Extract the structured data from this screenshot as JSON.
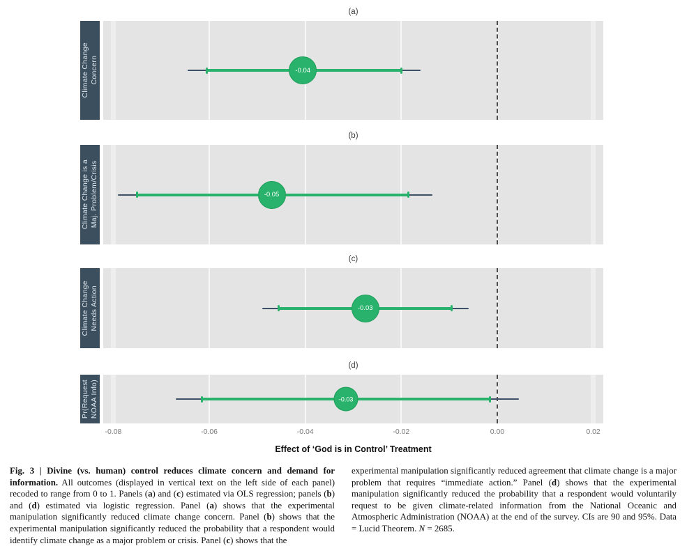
{
  "theme": {
    "accent_green": "#29b26b",
    "accent_green_dark": "#1d9e59",
    "ci_dark": "#3c5168",
    "panel_bg": "#e4e4e4",
    "label_box_bg": "#3c4f5e",
    "label_text": "#dde6ed",
    "gridline": "#f7f7f7",
    "gridline_edge": "#eeeeee",
    "zero_line": "#4d4d4d",
    "tick_text": "#7a7a7a"
  },
  "chart_data": {
    "type": "scatter",
    "subtype": "coefficient-dot-whisker",
    "x_axis": {
      "label": "Effect of ‘God is in Control’ Treatment",
      "min": -0.0821,
      "max": 0.0221,
      "ticks": [
        -0.08,
        -0.06,
        -0.04,
        -0.02,
        0,
        0.02
      ],
      "tick_labels": [
        "-0.08",
        "-0.06",
        "-0.04",
        "-0.02",
        "0.00",
        "0.02"
      ]
    },
    "zero_reference": 0,
    "grid": true,
    "panels": [
      {
        "panel_label": "(a)",
        "outcome": "Climate Change\nConcern",
        "estimate": -0.0405,
        "estimate_label": "-0.04",
        "ci90": [
          -0.0605,
          -0.02
        ],
        "ci95": [
          -0.0645,
          -0.016
        ]
      },
      {
        "panel_label": "(b)",
        "outcome": "Climate Change is a\nMaj. Problem/Crisis",
        "estimate": -0.047,
        "estimate_label": "-0.05",
        "ci90": [
          -0.075,
          -0.0185
        ],
        "ci95": [
          -0.079,
          -0.0135
        ]
      },
      {
        "panel_label": "(c)",
        "outcome": "Climate Change\nNeeds Action",
        "estimate": -0.0275,
        "estimate_label": "-0.03",
        "ci90": [
          -0.0455,
          -0.0095
        ],
        "ci95": [
          -0.049,
          -0.006
        ]
      },
      {
        "panel_label": "(d)",
        "outcome": "Pr(Request\nNOAA Info)",
        "estimate": -0.0315,
        "estimate_label": "-0.03",
        "ci90": [
          -0.0615,
          -0.0015
        ],
        "ci95": [
          -0.067,
          0.0045
        ]
      }
    ]
  },
  "caption": {
    "left": [
      {
        "t": "Fig. 3 | Divine (vs. human) control reduces climate concern and demand for information.",
        "b": true
      },
      {
        "t": " All outcomes (displayed in vertical text on the left side of each panel) recoded to range from 0 to 1. Panels ("
      },
      {
        "t": "a",
        "b": true
      },
      {
        "t": ") and ("
      },
      {
        "t": "c",
        "b": true
      },
      {
        "t": ") estimated via OLS regression; panels ("
      },
      {
        "t": "b",
        "b": true
      },
      {
        "t": ") and ("
      },
      {
        "t": "d",
        "b": true
      },
      {
        "t": ") estimated via logistic regression. Panel ("
      },
      {
        "t": "a",
        "b": true
      },
      {
        "t": ") shows that the experimental manipulation significantly reduced climate change concern. Panel ("
      },
      {
        "t": "b",
        "b": true
      },
      {
        "t": ") shows that the experimental manipulation significantly reduced the probability that a respondent would identify climate change as a major problem or crisis. Panel ("
      },
      {
        "t": "c",
        "b": true
      },
      {
        "t": ") shows that the"
      }
    ],
    "right": [
      {
        "t": "experimental manipulation significantly reduced agreement that climate change is a major problem that requires “immediate action.” Panel ("
      },
      {
        "t": "d",
        "b": true
      },
      {
        "t": ") shows that the experimental manipulation significantly reduced the probability that a respondent would voluntarily request to be given climate-related information from the National Oceanic and Atmospheric Administration (NOAA) at the end of the survey. CIs are 90 and 95%. Data = Lucid Theorem. "
      },
      {
        "t": "N",
        "i": true
      },
      {
        "t": " = 2685."
      }
    ]
  }
}
